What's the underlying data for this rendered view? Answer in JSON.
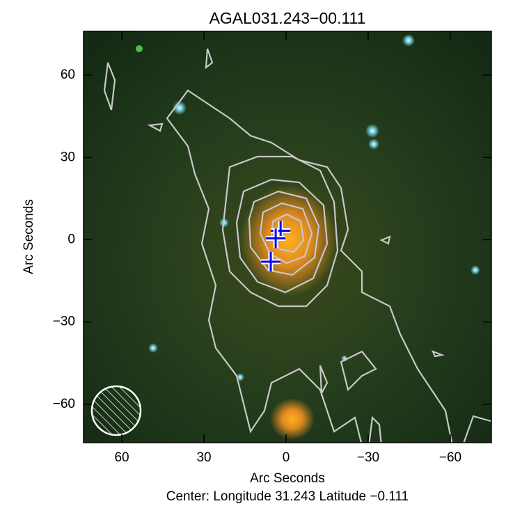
{
  "chart_data": {
    "type": "scatter",
    "title": "AGAL031.243−00.111",
    "x_label": "Arc Seconds",
    "y_label": "Arc Seconds",
    "subtitle": "Center:  Longitude 31.243 Latitude −0.111",
    "x": [
      2,
      3.8,
      5.6
    ],
    "values": [
      3.3,
      0.5,
      -8
    ],
    "color": "#0000ff",
    "xlim": [
      74,
      -75
    ],
    "ylim": [
      -74,
      76
    ],
    "xticks": [
      60,
      30,
      0,
      {
        "value": -30,
        "label": "−30"
      },
      {
        "value": -60,
        "label": "−60"
      }
    ],
    "yticks": [
      {
        "value": -60,
        "label": "−60"
      },
      {
        "value": -30,
        "label": "−30"
      },
      0,
      30,
      60
    ]
  }
}
